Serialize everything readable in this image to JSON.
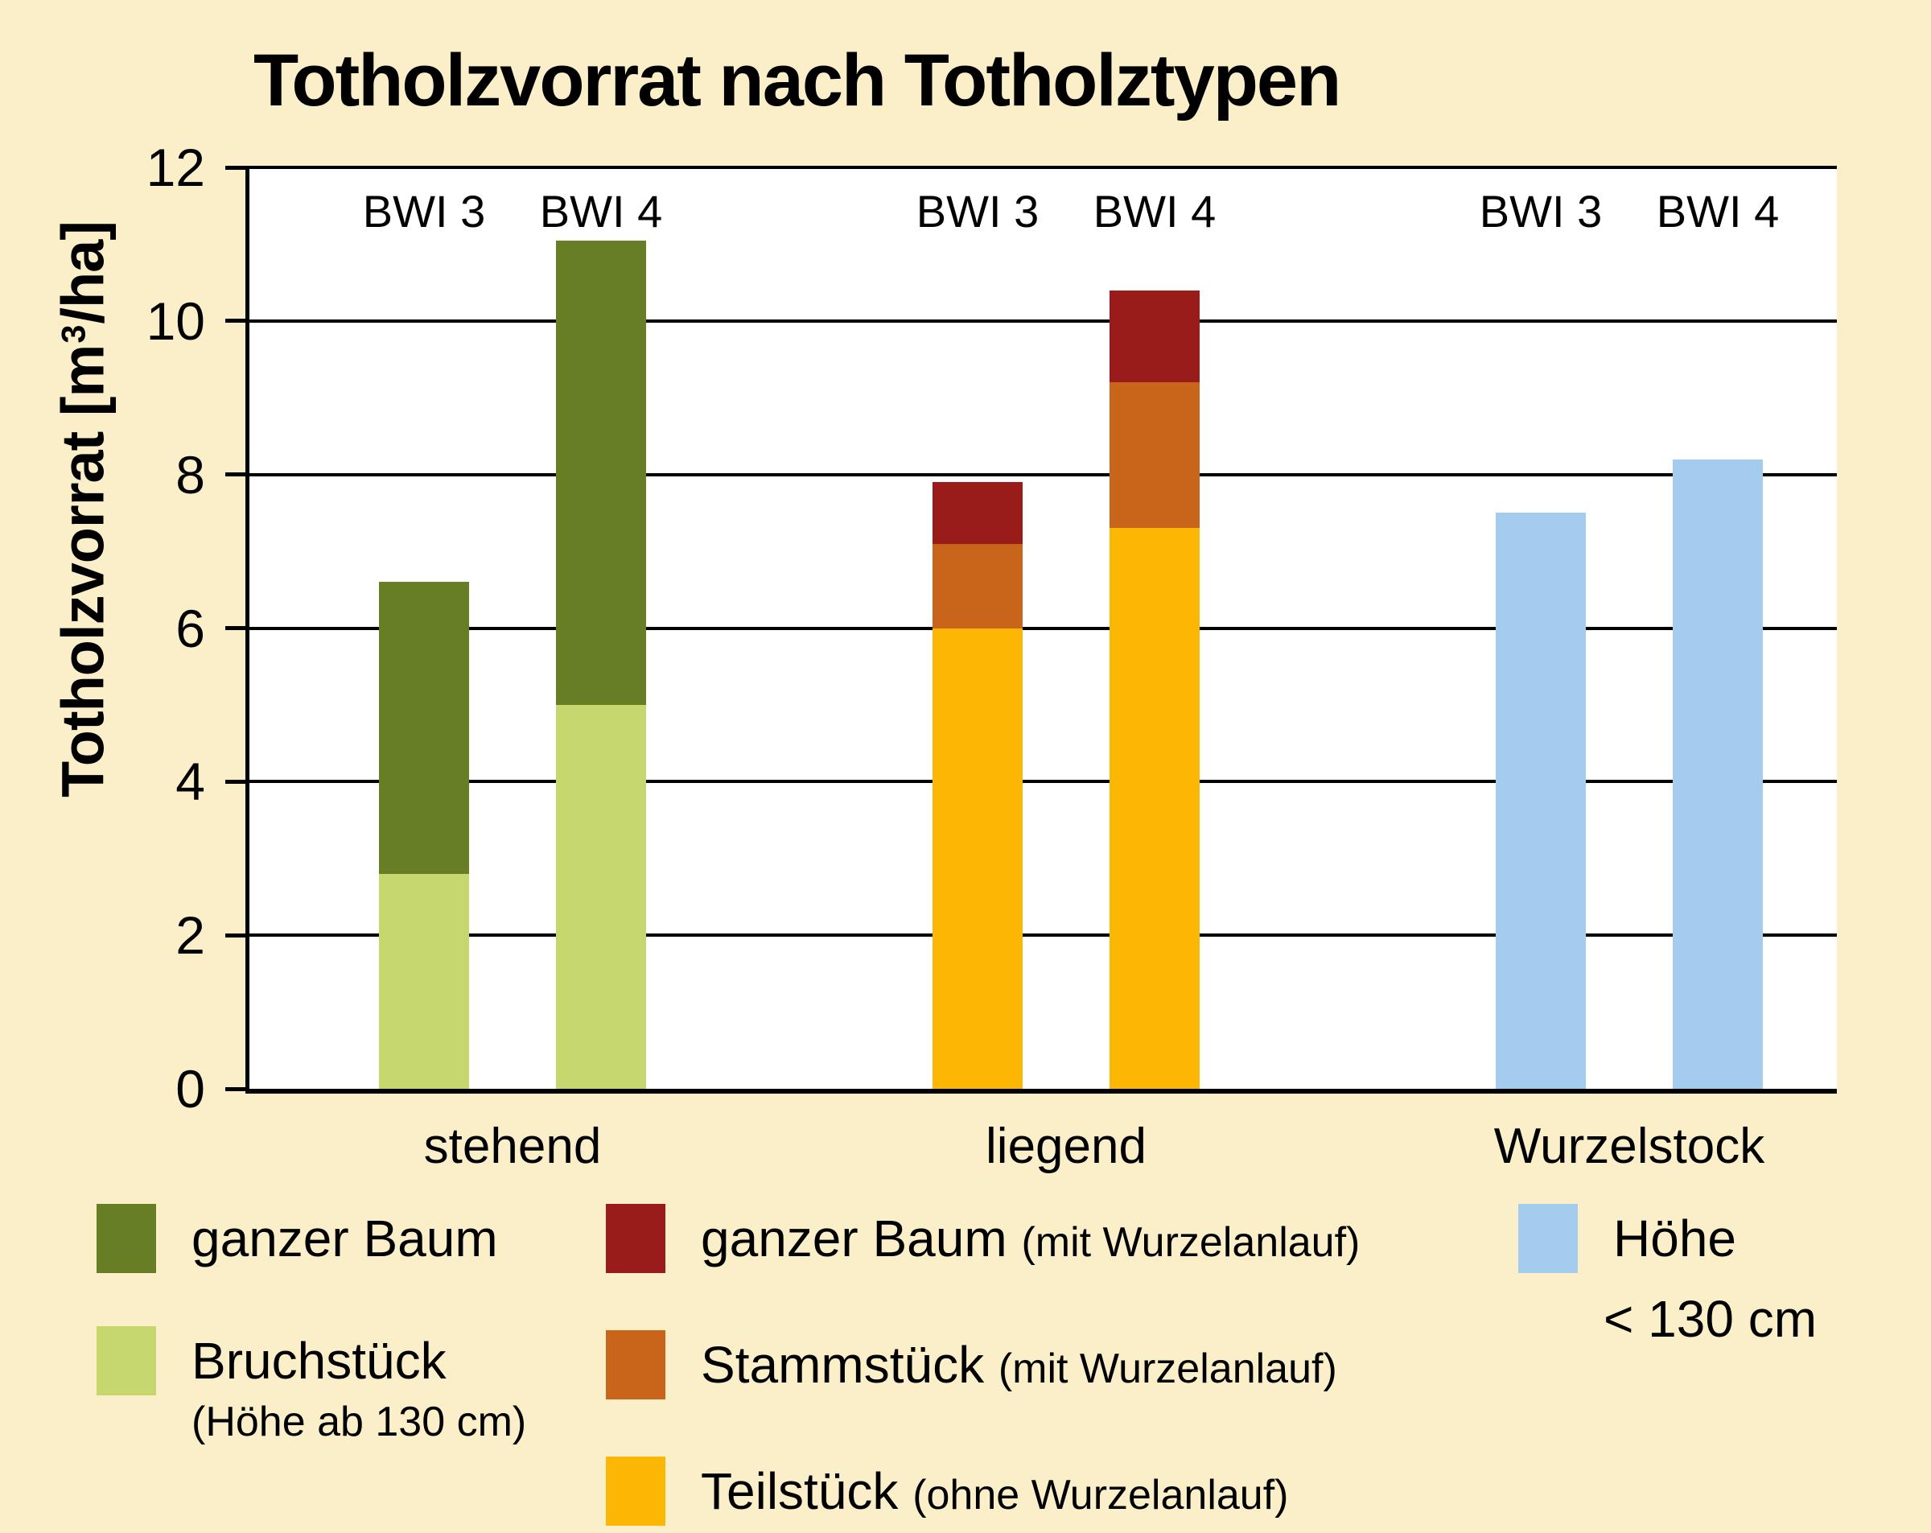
{
  "title": "Totholzvorrat nach Totholztypen",
  "y_axis": {
    "label_prefix": "Totholzvorrat [m",
    "label_sup": "3",
    "label_suffix": "/ha]"
  },
  "colors": {
    "background": "#FBEFCA",
    "plot_background": "#FFFFFF",
    "axis": "#000000",
    "dark_green": "#687E24",
    "light_green": "#C5D76D",
    "dark_red": "#9A1C1A",
    "orange": "#C8651B",
    "yellow": "#FBB703",
    "light_blue": "#A3CCEE"
  },
  "chart_data": {
    "type": "bar",
    "variant": "stacked-vertical",
    "title": "Totholzvorrat nach Totholztypen",
    "ylabel": "Totholzvorrat [m³/ha]",
    "ylim": [
      0,
      12
    ],
    "yticks": [
      0,
      2,
      4,
      6,
      8,
      10,
      12
    ],
    "grid": "horizontal",
    "groups": [
      {
        "label": "stehend",
        "bars": [
          {
            "label": "BWI 3",
            "total": 6.6,
            "segments": [
              {
                "name": "Bruchstück (Höhe ab 130 cm)",
                "value": 2.8,
                "color": "#C5D76D"
              },
              {
                "name": "ganzer Baum",
                "value": 3.8,
                "color": "#687E24"
              }
            ]
          },
          {
            "label": "BWI 4",
            "total": 11.05,
            "segments": [
              {
                "name": "Bruchstück (Höhe ab 130 cm)",
                "value": 5.0,
                "color": "#C5D76D"
              },
              {
                "name": "ganzer Baum",
                "value": 6.05,
                "color": "#687E24"
              }
            ]
          }
        ]
      },
      {
        "label": "liegend",
        "bars": [
          {
            "label": "BWI 3",
            "total": 7.9,
            "segments": [
              {
                "name": "Teilstück (ohne Wurzelanlauf)",
                "value": 6.0,
                "color": "#FBB703"
              },
              {
                "name": "Stammstück (mit Wurzelanlauf)",
                "value": 1.1,
                "color": "#C8651B"
              },
              {
                "name": "ganzer Baum (mit Wurzelanlauf)",
                "value": 0.8,
                "color": "#9A1C1A"
              }
            ]
          },
          {
            "label": "BWI 4",
            "total": 10.4,
            "segments": [
              {
                "name": "Teilstück (ohne Wurzelanlauf)",
                "value": 7.3,
                "color": "#FBB703"
              },
              {
                "name": "Stammstück (mit Wurzelanlauf)",
                "value": 1.9,
                "color": "#C8651B"
              },
              {
                "name": "ganzer Baum (mit Wurzelanlauf)",
                "value": 1.2,
                "color": "#9A1C1A"
              }
            ]
          }
        ]
      },
      {
        "label": "Wurzelstock",
        "bars": [
          {
            "label": "BWI 3",
            "total": 7.5,
            "segments": [
              {
                "name": "Höhe < 130 cm",
                "value": 7.5,
                "color": "#A3CCEE"
              }
            ]
          },
          {
            "label": "BWI 4",
            "total": 8.2,
            "segments": [
              {
                "name": "Höhe < 130 cm",
                "value": 8.2,
                "color": "#A3CCEE"
              }
            ]
          }
        ]
      }
    ]
  },
  "legend": {
    "columns": [
      [
        {
          "label": "ganzer Baum",
          "paren": "",
          "sub": "",
          "color": "#687E24"
        },
        {
          "label": "Bruchstück",
          "paren": "",
          "sub": "(Höhe ab 130 cm)",
          "color": "#C5D76D"
        }
      ],
      [
        {
          "label": "ganzer Baum",
          "paren": "(mit Wurzelanlauf)",
          "sub": "",
          "color": "#9A1C1A"
        },
        {
          "label": "Stammstück",
          "paren": "(mit Wurzelanlauf)",
          "sub": "",
          "color": "#C8651B"
        },
        {
          "label": "Teilstück",
          "paren": "(ohne Wurzelanlauf)",
          "sub": "",
          "color": "#FBB703"
        }
      ],
      [
        {
          "label": "Höhe",
          "paren": "",
          "sub": "< 130 cm",
          "color": "#A3CCEE"
        }
      ]
    ]
  }
}
